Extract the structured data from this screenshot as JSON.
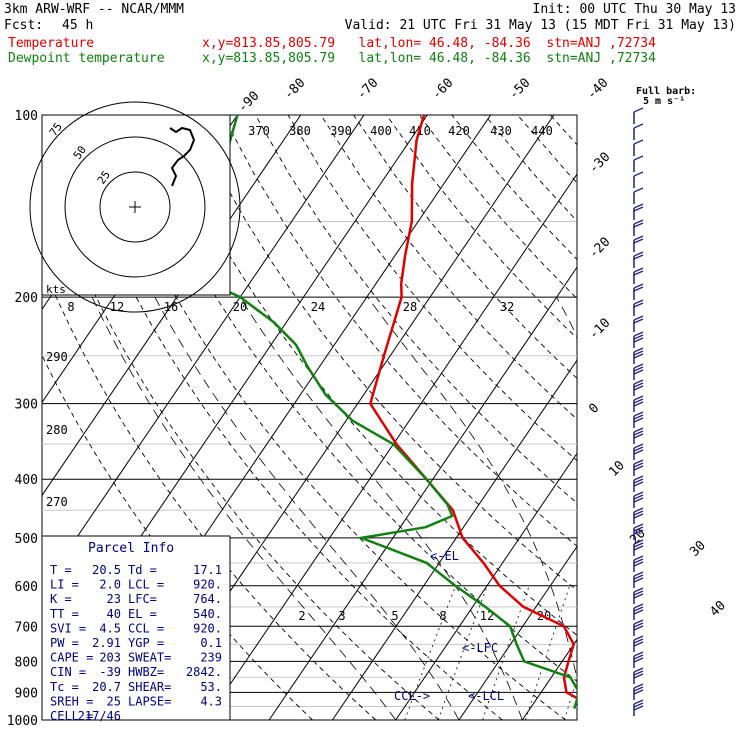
{
  "header": {
    "model": "3km ARW-WRF -- NCAR/MMM",
    "init": "Init: 00 UTC Thu 30 May 13",
    "fcst_label": "Fcst:",
    "fcst_value": "45 h",
    "valid": "Valid: 21 UTC Fri 31 May 13 (15 MDT Fri 31 May 13)",
    "temp_label": "Temperature",
    "dew_label": "Dewpoint temperature",
    "location": "x,y=813.85,805.79   lat,lon= 46.48, -84.36  stn=ANJ ,72734"
  },
  "wind_barb_title": "Full barb:",
  "wind_barb_unit": "5 m s⁻¹",
  "hodo_label": "kts",
  "hodo_rings": [
    "25",
    "50",
    "75"
  ],
  "parcel_title": "Parcel Info",
  "parcel_rows": [
    [
      "T  =",
      "20.5",
      "Td =",
      "17.1"
    ],
    [
      "LI =",
      "2.0",
      "LCL =",
      "920."
    ],
    [
      "K  =",
      "23",
      "LFC=",
      "764."
    ],
    [
      "TT =",
      "40",
      "EL =",
      "540."
    ],
    [
      "SVI =",
      "4.5",
      "CCL =",
      "920."
    ],
    [
      "PW =",
      "2.91",
      "YGP =",
      "0.1"
    ],
    [
      "CAPE =",
      "203",
      "SWEAT=",
      "239"
    ],
    [
      "CIN =",
      "-39",
      "HWBZ=",
      "2842."
    ],
    [
      "Tc =",
      "20.7",
      "SHEAR=",
      "53."
    ],
    [
      "SREH =",
      "25",
      "LAPSE=",
      "4.3"
    ],
    [
      "CELL =",
      "217/46",
      "",
      ""
    ]
  ],
  "level_markers": [
    "<-EL",
    "<-LFC",
    "CCL->",
    "<-LCL"
  ],
  "colors": {
    "temperature": "#e00000",
    "dewpoint": "#108010",
    "parcel": "#000080",
    "barbs": "#202080"
  },
  "chart_data": {
    "type": "line",
    "title": "",
    "xlabel": "",
    "ylabel": "",
    "pressure_ticks": [
      "100",
      "200",
      "300",
      "400",
      "500",
      "600",
      "700",
      "800",
      "900",
      "1000"
    ],
    "isotherm_labels": [
      "-90",
      "-80",
      "-70",
      "-60",
      "-50",
      "-40",
      "-30",
      "-20",
      "-10",
      "0",
      "10",
      "20",
      "30",
      "40"
    ],
    "theta_labels": [
      "370",
      "380",
      "390",
      "400",
      "410",
      "420",
      "430",
      "440"
    ],
    "theta_left_labels": [
      "290",
      "280",
      "270"
    ],
    "mixing_ratio_labels_upper": [
      "8",
      "12",
      "16",
      "20",
      "24",
      "28",
      "32"
    ],
    "mixing_ratio_labels_lower": [
      "2",
      "3",
      "5",
      "8",
      "12",
      "20"
    ],
    "series": [
      {
        "name": "Temperature",
        "points": [
          [
            -70.5,
            100
          ],
          [
            -69,
            110
          ],
          [
            -65,
            130
          ],
          [
            -61,
            150
          ],
          [
            -58.5,
            170
          ],
          [
            -56,
            190
          ],
          [
            -54.5,
            200
          ],
          [
            -51,
            250
          ],
          [
            -48,
            300
          ],
          [
            -39.5,
            350
          ],
          [
            -31,
            400
          ],
          [
            -23.5,
            450
          ],
          [
            -19,
            500
          ],
          [
            -13,
            550
          ],
          [
            -8,
            600
          ],
          [
            -2,
            650
          ],
          [
            6.5,
            700
          ],
          [
            10,
            750
          ],
          [
            11,
            800
          ],
          [
            12,
            850
          ],
          [
            14,
            900
          ],
          [
            20.5,
            958
          ]
        ]
      },
      {
        "name": "Dewpoint temperature",
        "points": [
          [
            -100,
            100
          ],
          [
            -97,
            120
          ],
          [
            -96,
            140
          ],
          [
            -92,
            160
          ],
          [
            -87,
            180
          ],
          [
            -83,
            195
          ],
          [
            -80,
            200
          ],
          [
            -72,
            220
          ],
          [
            -66,
            240
          ],
          [
            -62,
            260
          ],
          [
            -56,
            290
          ],
          [
            -49,
            320
          ],
          [
            -40,
            350
          ],
          [
            -31,
            400
          ],
          [
            -25,
            440
          ],
          [
            -23,
            460
          ],
          [
            -26,
            480
          ],
          [
            -35,
            500
          ],
          [
            -22,
            550
          ],
          [
            -15,
            600
          ],
          [
            -8,
            650
          ],
          [
            -2,
            700
          ],
          [
            1,
            750
          ],
          [
            4,
            800
          ],
          [
            13,
            850
          ],
          [
            16,
            900
          ],
          [
            17,
            958
          ]
        ]
      }
    ]
  }
}
